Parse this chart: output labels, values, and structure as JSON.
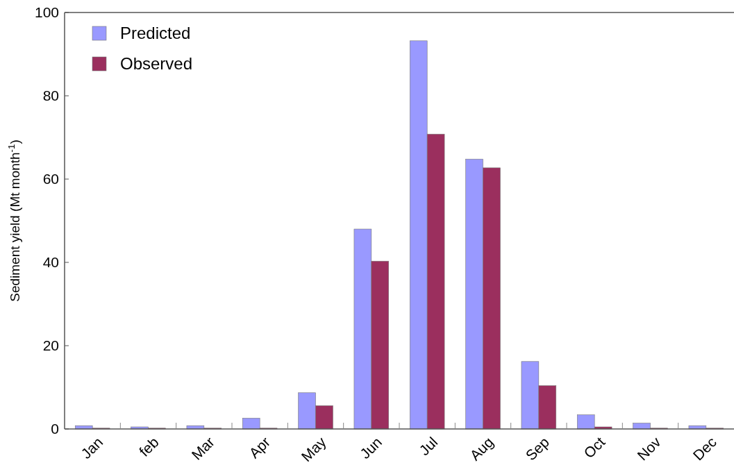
{
  "chart_data": {
    "type": "bar",
    "ylabel": "Sediment yield (Mt month$^{-1}$)",
    "categories": [
      "Jan",
      "feb",
      "Mar",
      "Apr",
      "May",
      "Jun",
      "Jul",
      "Aug",
      "Sep",
      "Oct",
      "Nov",
      "Dec"
    ],
    "series": [
      {
        "name": "Predicted",
        "color": "#9999ff",
        "values": [
          0.8,
          0.5,
          0.8,
          2.6,
          8.7,
          48,
          93.2,
          64.8,
          16.2,
          3.4,
          1.4,
          0.8
        ]
      },
      {
        "name": "Observed",
        "color": "#9b2f5e",
        "values": [
          0.2,
          0.2,
          0.2,
          0.2,
          5.6,
          40.3,
          70.8,
          62.7,
          10.4,
          0.5,
          0.2,
          0.2
        ]
      }
    ],
    "ylim": [
      0,
      100
    ],
    "yticks": [
      0,
      20,
      40,
      60,
      80,
      100
    ],
    "grid": false,
    "legend": "top left"
  }
}
